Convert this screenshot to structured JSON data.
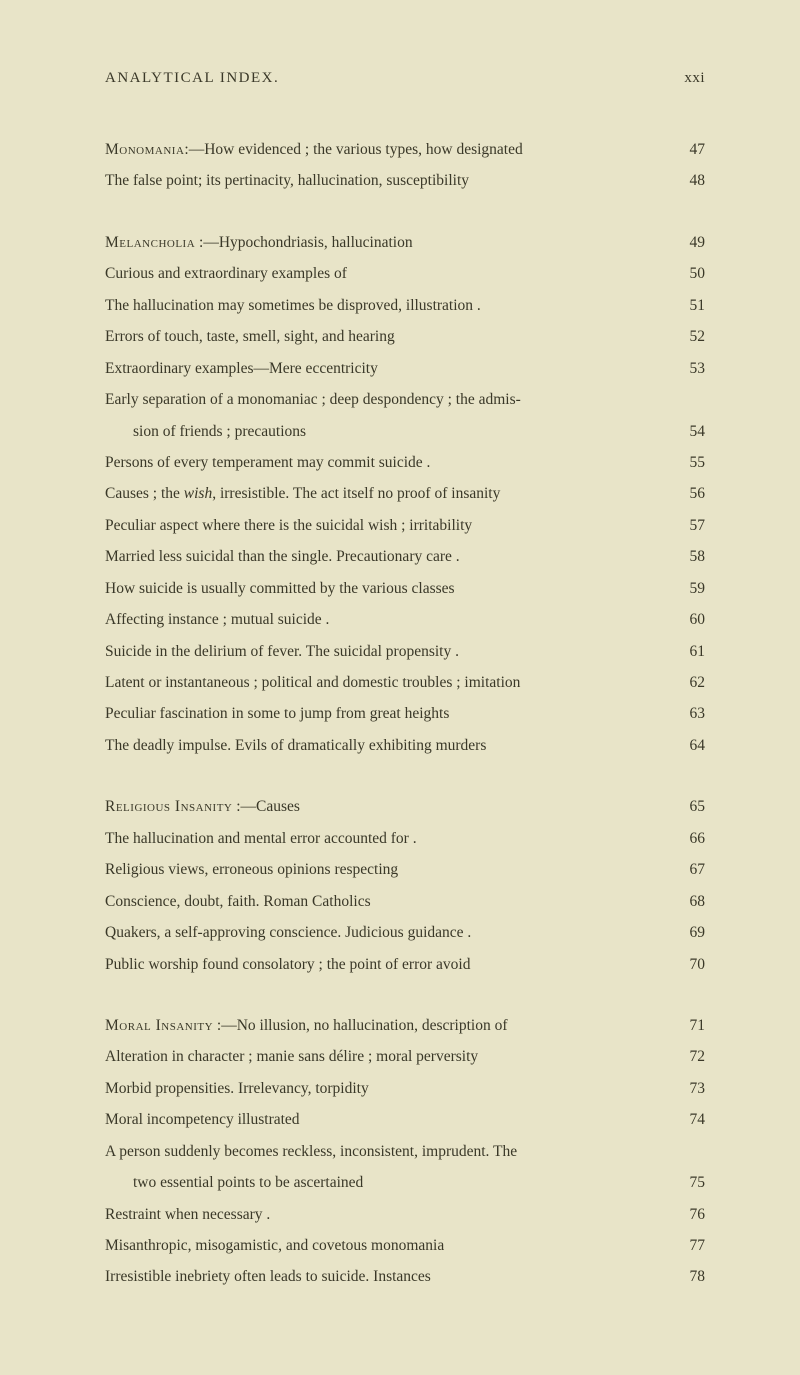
{
  "header": {
    "title": "ANALYTICAL INDEX.",
    "pagenum": "xxi"
  },
  "sections": [
    {
      "entries": [
        {
          "text_pre": "Monomania",
          "text_post": ":—How evidenced ; the various types, how designated",
          "page": "47",
          "smallcaps": true
        },
        {
          "text": "The false point; its pertinacity, hallucination, susceptibility",
          "page": "48"
        }
      ]
    },
    {
      "entries": [
        {
          "text_pre": "Melancholia",
          "text_post": " :—Hypochondriasis, hallucination",
          "page": "49",
          "smallcaps": true
        },
        {
          "text": "Curious and extraordinary examples of",
          "page": "50"
        },
        {
          "text": "The hallucination may sometimes be disproved, illustration .",
          "page": "51"
        },
        {
          "text": "Errors of touch, taste, smell, sight, and hearing",
          "page": "52"
        },
        {
          "text": "Extraordinary examples—Mere eccentricity",
          "page": "53"
        },
        {
          "text": "Early separation of a monomaniac ; deep despondency ; the admis-",
          "page": ""
        },
        {
          "text": "sion of friends ; precautions",
          "page": "54",
          "indent": true
        },
        {
          "text": "Persons of every temperament may commit suicide .",
          "page": "55"
        },
        {
          "text_pre": "Causes ; the ",
          "text_italic": "wish",
          "text_post": ", irresistible.  The act itself no proof of insanity",
          "page": "56"
        },
        {
          "text": "Peculiar aspect where there is the suicidal wish ; irritability",
          "page": "57"
        },
        {
          "text": "Married less suicidal than the single.  Precautionary care  .",
          "page": "58"
        },
        {
          "text": "How suicide is usually committed by the various classes",
          "page": "59"
        },
        {
          "text": "Affecting instance ; mutual suicide .",
          "page": "60"
        },
        {
          "text": "Suicide in the delirium of fever.  The suicidal propensity  .",
          "page": "61"
        },
        {
          "text": "Latent or instantaneous ; political and domestic troubles ; imitation",
          "page": "62"
        },
        {
          "text": "Peculiar fascination in some to jump from great heights",
          "page": "63"
        },
        {
          "text": "The deadly impulse.  Evils of dramatically exhibiting murders",
          "page": "64"
        }
      ]
    },
    {
      "entries": [
        {
          "text_pre": "Religious Insanity",
          "text_post": " :—Causes",
          "page": "65",
          "smallcaps": true
        },
        {
          "text": "The hallucination and mental error accounted for  .",
          "page": "66"
        },
        {
          "text": "Religious views, erroneous opinions respecting",
          "page": "67"
        },
        {
          "text": "Conscience, doubt, faith.  Roman Catholics",
          "page": "68"
        },
        {
          "text": "Quakers, a self-approving conscience.  Judicious guidance  .",
          "page": "69"
        },
        {
          "text": "Public worship found consolatory ; the point of error avoid",
          "page": "70"
        }
      ]
    },
    {
      "entries": [
        {
          "text_pre": "Moral Insanity",
          "text_post": " :—No illusion, no hallucination, description of",
          "page": "71",
          "smallcaps": true
        },
        {
          "text": "Alteration in character ; manie sans délire ; moral perversity",
          "page": "72"
        },
        {
          "text": "Morbid propensities.  Irrelevancy, torpidity",
          "page": "73"
        },
        {
          "text": "Moral incompetency illustrated",
          "page": "74"
        },
        {
          "text": "A person suddenly becomes reckless, inconsistent, imprudent.  The",
          "page": ""
        },
        {
          "text": "two essential points to be ascertained",
          "page": "75",
          "indent": true
        },
        {
          "text": "Restraint when necessary .",
          "page": "76"
        },
        {
          "text": "Misanthropic, misogamistic, and covetous monomania",
          "page": "77"
        },
        {
          "text": "Irresistible inebriety often leads to suicide.  Instances",
          "page": "78"
        }
      ]
    }
  ]
}
